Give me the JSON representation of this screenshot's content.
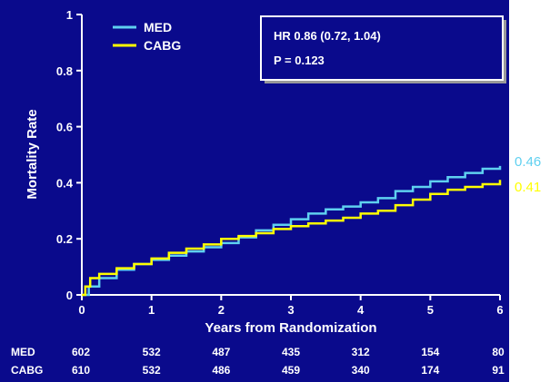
{
  "chart_data": {
    "type": "line",
    "xlabel": "Years from Randomization",
    "ylabel": "Mortality Rate",
    "xlim": [
      0,
      6
    ],
    "ylim": [
      0,
      1
    ],
    "x_ticks": [
      "0",
      "1",
      "2",
      "3",
      "4",
      "5",
      "6"
    ],
    "y_ticks": [
      "0",
      "0.2",
      "0.4",
      "0.6",
      "0.8",
      "1"
    ],
    "series": [
      {
        "name": "MED",
        "color": "#5fd0f0",
        "end_label": "0.46",
        "points": [
          [
            0,
            0
          ],
          [
            0.1,
            0.03
          ],
          [
            0.25,
            0.06
          ],
          [
            0.5,
            0.09
          ],
          [
            0.75,
            0.11
          ],
          [
            1,
            0.125
          ],
          [
            1.25,
            0.14
          ],
          [
            1.5,
            0.155
          ],
          [
            1.75,
            0.17
          ],
          [
            2,
            0.185
          ],
          [
            2.25,
            0.205
          ],
          [
            2.5,
            0.23
          ],
          [
            2.75,
            0.25
          ],
          [
            3,
            0.27
          ],
          [
            3.25,
            0.29
          ],
          [
            3.5,
            0.305
          ],
          [
            3.75,
            0.315
          ],
          [
            4,
            0.33
          ],
          [
            4.25,
            0.345
          ],
          [
            4.5,
            0.37
          ],
          [
            4.75,
            0.385
          ],
          [
            5,
            0.405
          ],
          [
            5.25,
            0.42
          ],
          [
            5.5,
            0.435
          ],
          [
            5.75,
            0.45
          ],
          [
            6,
            0.46
          ]
        ]
      },
      {
        "name": "CABG",
        "color": "#ffff00",
        "end_label": "0.41",
        "points": [
          [
            0,
            0
          ],
          [
            0.05,
            0.03
          ],
          [
            0.12,
            0.06
          ],
          [
            0.25,
            0.075
          ],
          [
            0.5,
            0.095
          ],
          [
            0.75,
            0.11
          ],
          [
            1,
            0.13
          ],
          [
            1.25,
            0.15
          ],
          [
            1.5,
            0.165
          ],
          [
            1.75,
            0.18
          ],
          [
            2,
            0.2
          ],
          [
            2.25,
            0.21
          ],
          [
            2.5,
            0.22
          ],
          [
            2.75,
            0.235
          ],
          [
            3,
            0.245
          ],
          [
            3.25,
            0.255
          ],
          [
            3.5,
            0.265
          ],
          [
            3.75,
            0.275
          ],
          [
            4,
            0.29
          ],
          [
            4.25,
            0.3
          ],
          [
            4.5,
            0.32
          ],
          [
            4.75,
            0.34
          ],
          [
            5,
            0.36
          ],
          [
            5.25,
            0.375
          ],
          [
            5.5,
            0.385
          ],
          [
            5.75,
            0.395
          ],
          [
            6,
            0.41
          ]
        ]
      }
    ],
    "annotation": {
      "hr": "HR 0.86 (0.72, 1.04)",
      "p": "P = 0.123"
    },
    "risk_table": [
      {
        "label": "MED",
        "values": [
          "602",
          "532",
          "487",
          "435",
          "312",
          "154",
          "80"
        ]
      },
      {
        "label": "CABG",
        "values": [
          "610",
          "532",
          "486",
          "459",
          "340",
          "174",
          "91"
        ]
      }
    ]
  }
}
